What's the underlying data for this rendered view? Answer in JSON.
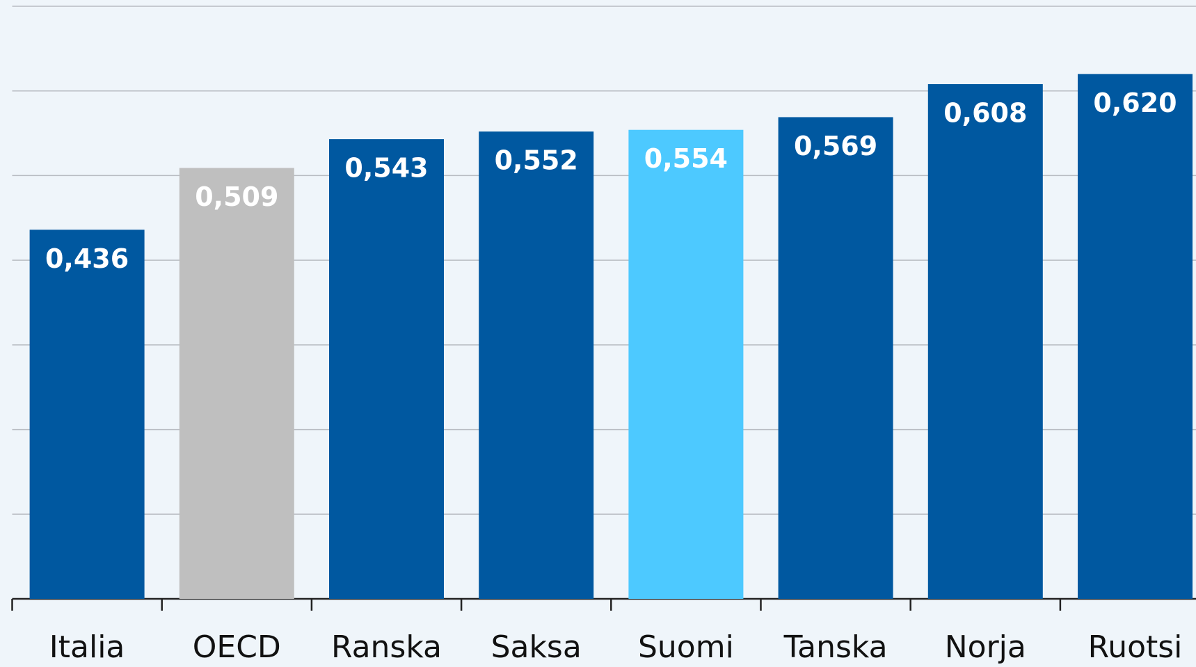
{
  "chart_data": {
    "type": "bar",
    "categories": [
      "Italia",
      "OECD",
      "Ranska",
      "Saksa",
      "Suomi",
      "Tanska",
      "Norja",
      "Ruotsi"
    ],
    "values": [
      0.436,
      0.509,
      0.543,
      0.552,
      0.554,
      0.569,
      0.608,
      0.62
    ],
    "value_labels": [
      "0,436",
      "0,509",
      "0,543",
      "0,552",
      "0,554",
      "0,569",
      "0,608",
      "0,620"
    ],
    "colors": [
      "#0058a0",
      "#bfbfbf",
      "#0058a0",
      "#0058a0",
      "#4dc9ff",
      "#0058a0",
      "#0058a0",
      "#0058a0"
    ],
    "ylim": [
      0,
      0.7
    ],
    "yticks": [
      0,
      0.1,
      0.2,
      0.3,
      0.4,
      0.5,
      0.6,
      0.7
    ],
    "grid": true
  }
}
